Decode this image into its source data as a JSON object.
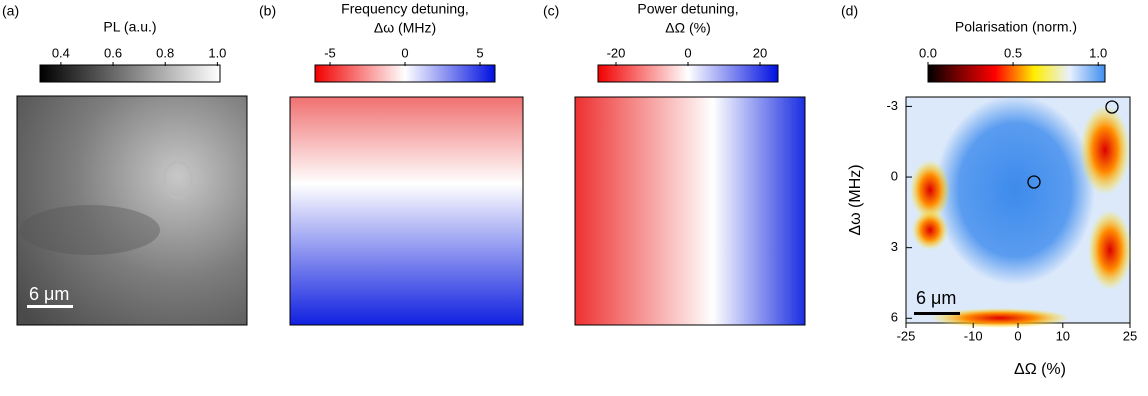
{
  "panels": [
    {
      "tag": "(a)",
      "title_lines": [
        "PL (a.u.)"
      ],
      "colorbar": {
        "lim": [
          0.32,
          1.01
        ],
        "ticks": [
          0.4,
          0.6,
          0.8,
          {
            "value": 1,
            "label": "1.0"
          }
        ]
      },
      "scalebar": "6 μm"
    },
    {
      "tag": "(b)",
      "title_lines": [
        "Frequency detuning,",
        "Δω  (MHz)"
      ],
      "colorbar": {
        "lim": [
          -6,
          6
        ],
        "ticks": [
          -5,
          0,
          5
        ]
      }
    },
    {
      "tag": "(c)",
      "title_lines": [
        "Power detuning,",
        "ΔΩ (%)"
      ],
      "colorbar": {
        "lim": [
          -25,
          25
        ],
        "ticks": [
          -20,
          0,
          20
        ]
      }
    },
    {
      "tag": "(d)",
      "title_lines": [
        "Polarisation (norm.)"
      ],
      "colorbar": {
        "lim": [
          0,
          1.04
        ],
        "ticks": [
          {
            "value": 0,
            "label": "0.0"
          },
          0.5,
          {
            "value": 1,
            "label": "1.0"
          }
        ]
      },
      "scalebar": "6 μm",
      "y_label": "Δω (MHz)",
      "ylim": [
        -3.4,
        6.2
      ],
      "yticks": [
        -3,
        0,
        3,
        6
      ],
      "x_label": "ΔΩ (%)",
      "xlim": [
        -25,
        25
      ],
      "xticks": [
        -25,
        -10,
        0,
        10,
        25
      ]
    }
  ]
}
